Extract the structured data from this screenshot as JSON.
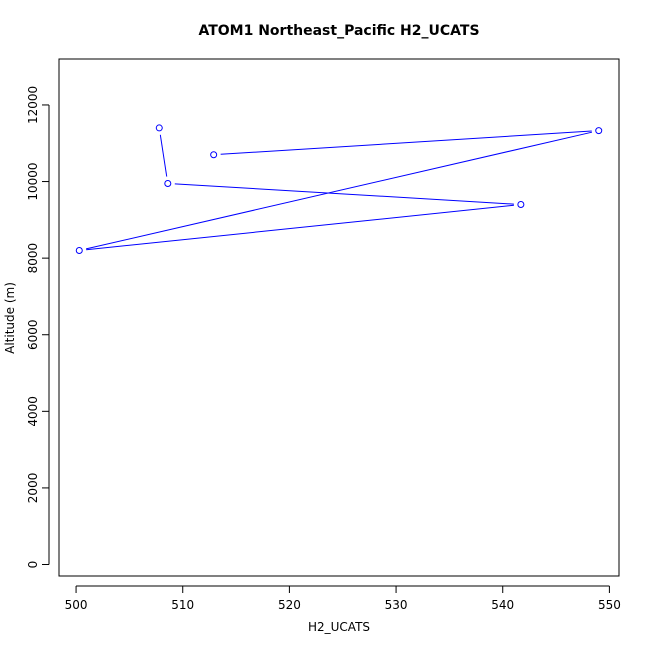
{
  "chart_data": {
    "type": "line",
    "title": "ATOM1 Northeast_Pacific H2_UCATS",
    "xlabel": "H2_UCATS",
    "ylabel": "Altitude (m)",
    "xlim": [
      498.4,
      550.9
    ],
    "ylim": [
      -300,
      13200
    ],
    "x_ticks": [
      500,
      510,
      520,
      530,
      540,
      550
    ],
    "y_ticks": [
      0,
      2000,
      4000,
      6000,
      8000,
      10000,
      12000
    ],
    "grid": false,
    "legend": "none",
    "series": [
      {
        "color": "#0000ff",
        "markers": "open-circle",
        "points": [
          {
            "x": 507.8,
            "y": 11400
          },
          {
            "x": 508.6,
            "y": 9950
          },
          {
            "x": 541.7,
            "y": 9400
          },
          {
            "x": 500.3,
            "y": 8200
          },
          {
            "x": 549.0,
            "y": 11330
          },
          {
            "x": 512.9,
            "y": 10700
          }
        ]
      }
    ]
  }
}
